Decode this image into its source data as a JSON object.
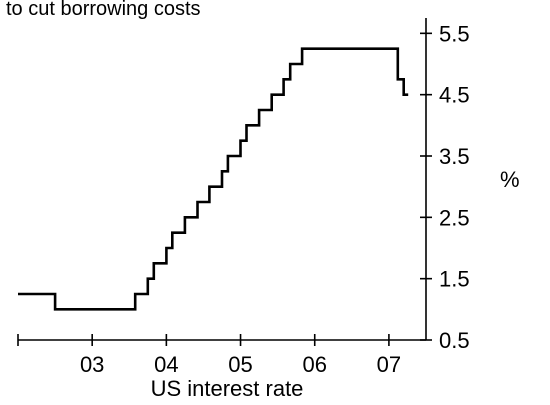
{
  "chart_data": {
    "type": "line",
    "title": "to cut borrowing costs",
    "xlabel": "US interest rate",
    "ylabel": "%",
    "x_ticks": [
      {
        "label": "03",
        "value": 2003.0
      },
      {
        "label": "04",
        "value": 2004.0
      },
      {
        "label": "05",
        "value": 2005.0
      },
      {
        "label": "06",
        "value": 2006.0
      },
      {
        "label": "07",
        "value": 2007.0
      }
    ],
    "y_ticks": [
      {
        "label": "0.5",
        "value": 0.5
      },
      {
        "label": "1.5",
        "value": 1.5
      },
      {
        "label": "2.5",
        "value": 2.5
      },
      {
        "label": "3.5",
        "value": 3.5
      },
      {
        "label": "4.5",
        "value": 4.5
      },
      {
        "label": "5.5",
        "value": 5.5
      }
    ],
    "xlim": [
      2002.5,
      2008.0
    ],
    "ylim": [
      0.5,
      5.75
    ],
    "grid": false,
    "series": [
      {
        "step": true,
        "color": "#000000",
        "x": [
          2002.5,
          2003.0,
          2004.0,
          2004.08,
          2004.17,
          2004.25,
          2004.33,
          2004.42,
          2004.5,
          2004.58,
          2004.67,
          2004.75,
          2004.83,
          2004.92,
          2005.0,
          2005.08,
          2005.17,
          2005.25,
          2005.33,
          2005.42,
          2005.5,
          2005.58,
          2005.67,
          2005.75,
          2005.83,
          2005.92,
          2006.0,
          2006.08,
          2006.17,
          2006.25,
          2006.33,
          2007.62,
          2007.7,
          2007.76
        ],
        "values": [
          1.25,
          1.0,
          1.0,
          1.25,
          1.25,
          1.5,
          1.75,
          1.75,
          2.0,
          2.25,
          2.25,
          2.5,
          2.5,
          2.75,
          2.75,
          3.0,
          3.0,
          3.25,
          3.5,
          3.5,
          3.75,
          4.0,
          4.0,
          4.25,
          4.25,
          4.5,
          4.5,
          4.75,
          5.0,
          5.0,
          5.25,
          4.75,
          4.5,
          4.5
        ]
      }
    ]
  }
}
